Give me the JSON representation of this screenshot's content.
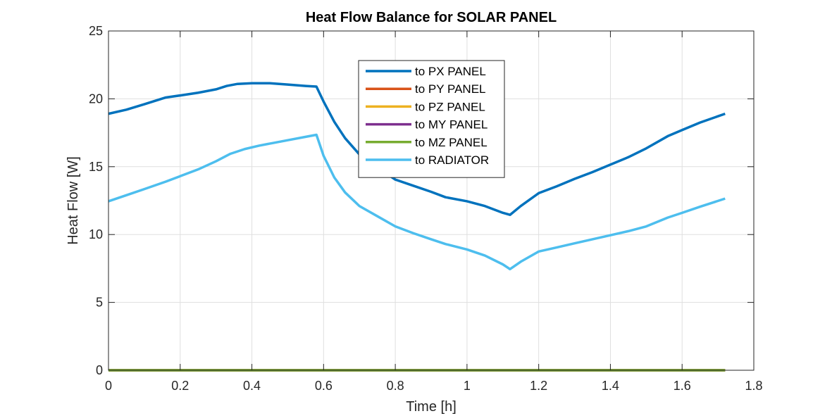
{
  "chart_data": {
    "type": "line",
    "title": "Heat Flow Balance for SOLAR PANEL",
    "xlabel": "Time [h]",
    "ylabel": "Heat Flow [W]",
    "xlim": [
      0,
      1.8
    ],
    "ylim": [
      0,
      25
    ],
    "xticks": [
      0,
      0.2,
      0.4,
      0.6,
      0.8,
      1,
      1.2,
      1.4,
      1.6,
      1.8
    ],
    "xtick_labels": [
      "0",
      "0.2",
      "0.4",
      "0.6",
      "0.8",
      "1",
      "1.2",
      "1.4",
      "1.6",
      "1.8"
    ],
    "yticks": [
      0,
      5,
      10,
      15,
      20,
      25
    ],
    "ytick_labels": [
      "0",
      "5",
      "10",
      "15",
      "20",
      "25"
    ],
    "grid": true,
    "legend_position": "top-center",
    "series": [
      {
        "name": "to PX PANEL",
        "color": "#0072BD",
        "x": [
          0,
          0.05,
          0.1,
          0.16,
          0.2,
          0.25,
          0.3,
          0.33,
          0.36,
          0.4,
          0.45,
          0.5,
          0.55,
          0.58,
          0.6,
          0.63,
          0.66,
          0.7,
          0.75,
          0.8,
          0.85,
          0.9,
          0.94,
          1.0,
          1.05,
          1.1,
          1.12,
          1.15,
          1.2,
          1.25,
          1.3,
          1.35,
          1.4,
          1.45,
          1.5,
          1.56,
          1.6,
          1.65,
          1.72
        ],
        "y": [
          18.9,
          19.2,
          19.6,
          20.1,
          20.25,
          20.45,
          20.7,
          20.95,
          21.1,
          21.15,
          21.15,
          21.05,
          20.95,
          20.9,
          19.8,
          18.3,
          17.1,
          15.9,
          14.95,
          14.05,
          13.6,
          13.15,
          12.75,
          12.45,
          12.1,
          11.6,
          11.45,
          12.1,
          13.05,
          13.55,
          14.1,
          14.6,
          15.15,
          15.7,
          16.35,
          17.25,
          17.7,
          18.25,
          18.9
        ]
      },
      {
        "name": "to PY PANEL",
        "color": "#D95319",
        "x": [
          0,
          1.72
        ],
        "y": [
          0,
          0
        ]
      },
      {
        "name": "to PZ PANEL",
        "color": "#EDB120",
        "x": [
          0,
          1.72
        ],
        "y": [
          0,
          0
        ]
      },
      {
        "name": "to MY PANEL",
        "color": "#7E2F8E",
        "x": [
          0,
          1.72
        ],
        "y": [
          0,
          0
        ]
      },
      {
        "name": "to MZ PANEL",
        "color": "#77AC30",
        "x": [
          0,
          1.72
        ],
        "y": [
          0,
          0
        ]
      },
      {
        "name": "to RADIATOR",
        "color": "#4DBEEE",
        "x": [
          0,
          0.05,
          0.1,
          0.16,
          0.2,
          0.25,
          0.3,
          0.34,
          0.38,
          0.42,
          0.46,
          0.5,
          0.55,
          0.58,
          0.6,
          0.63,
          0.66,
          0.7,
          0.75,
          0.8,
          0.85,
          0.9,
          0.94,
          1.0,
          1.05,
          1.1,
          1.12,
          1.15,
          1.2,
          1.25,
          1.3,
          1.35,
          1.4,
          1.45,
          1.5,
          1.56,
          1.6,
          1.65,
          1.72
        ],
        "y": [
          12.45,
          12.9,
          13.35,
          13.9,
          14.3,
          14.8,
          15.4,
          15.95,
          16.3,
          16.55,
          16.75,
          16.95,
          17.2,
          17.35,
          15.8,
          14.2,
          13.1,
          12.1,
          11.35,
          10.6,
          10.1,
          9.65,
          9.3,
          8.9,
          8.45,
          7.8,
          7.45,
          8.0,
          8.75,
          9.05,
          9.35,
          9.65,
          9.95,
          10.25,
          10.6,
          11.25,
          11.6,
          12.05,
          12.65
        ]
      }
    ]
  }
}
